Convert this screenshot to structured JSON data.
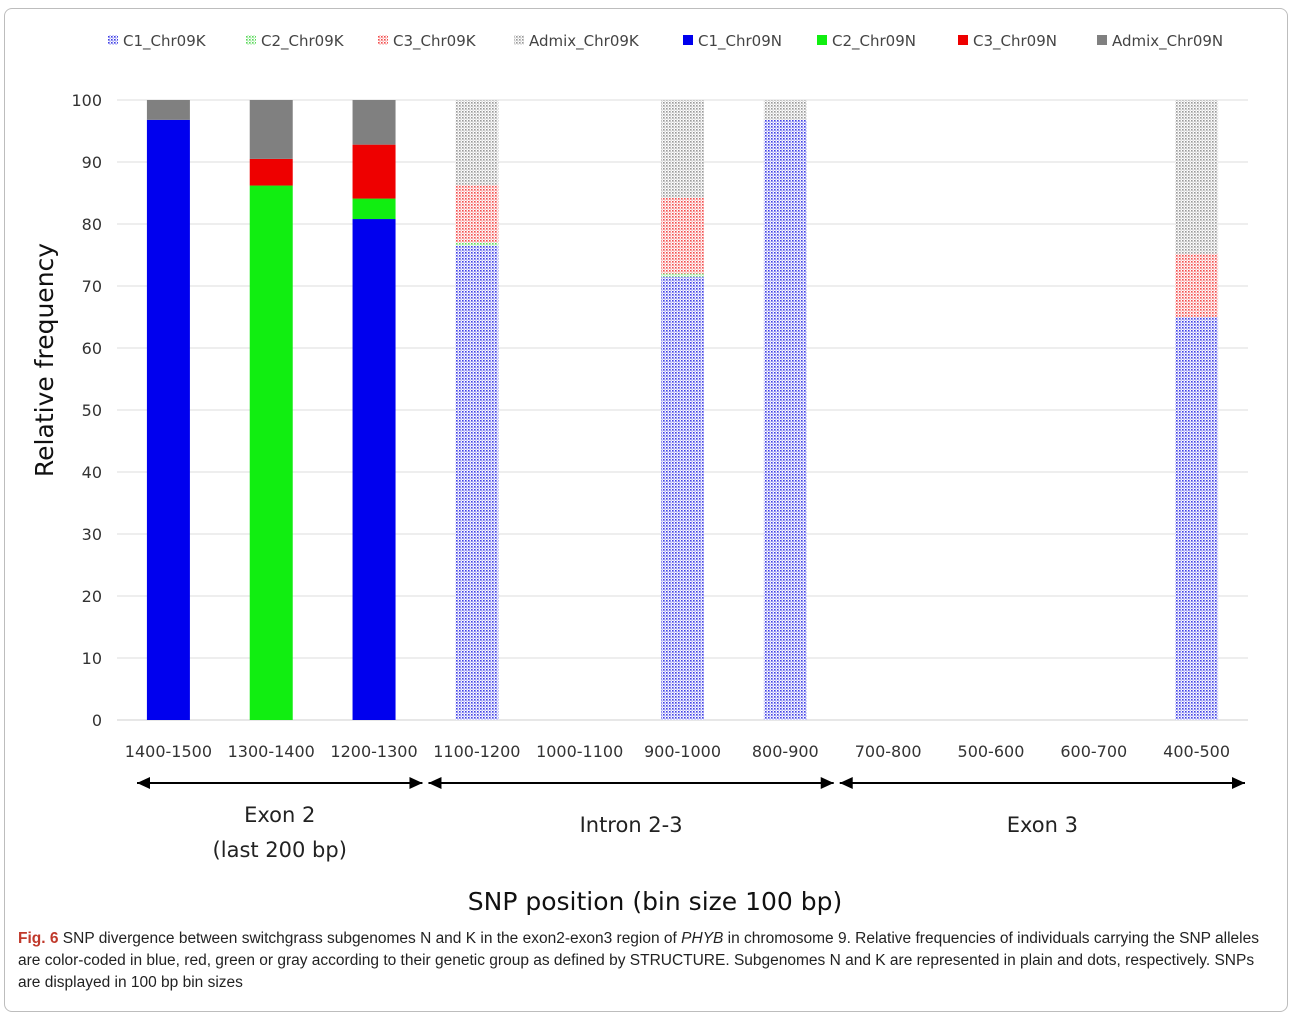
{
  "chart_data": {
    "type": "bar",
    "stacked": true,
    "ylabel": "Relative frequency",
    "xlabel": "SNP position (bin size 100 bp)",
    "ylim": [
      0,
      100
    ],
    "yticks": [
      0,
      10,
      20,
      30,
      40,
      50,
      60,
      70,
      80,
      90,
      100
    ],
    "grid": true,
    "legend_position": "top",
    "categories": [
      "1400-1500",
      "1300-1400",
      "1200-1300",
      "1100-1200",
      "1000-1100",
      "900-1000",
      "800-900",
      "700-800",
      "500-600",
      "600-700",
      "400-500"
    ],
    "series": [
      {
        "name": "C1_Chr09K",
        "color": "#0000dd",
        "pattern": "dots",
        "values": [
          0,
          0,
          0,
          76.5,
          0,
          71.5,
          96.8,
          0,
          0,
          0,
          65
        ]
      },
      {
        "name": "C2_Chr09K",
        "color": "#22cc22",
        "pattern": "dots",
        "values": [
          0,
          0,
          0,
          0.5,
          0,
          0.5,
          0,
          0,
          0,
          0,
          0
        ]
      },
      {
        "name": "C3_Chr09K",
        "color": "#ee1111",
        "pattern": "dots",
        "values": [
          0,
          0,
          0,
          9.3,
          0,
          12.2,
          0,
          0,
          0,
          0,
          10.2
        ]
      },
      {
        "name": "Admix_Chr09K",
        "color": "#777777",
        "pattern": "dots",
        "values": [
          0,
          0,
          0,
          13.7,
          0,
          15.8,
          3.2,
          0,
          0,
          0,
          24.8
        ]
      },
      {
        "name": "C1_Chr09N",
        "color": "#0000ee",
        "pattern": "solid",
        "values": [
          96.8,
          0,
          80.8,
          0,
          0,
          0,
          0,
          0,
          0,
          0,
          0
        ]
      },
      {
        "name": "C2_Chr09N",
        "color": "#11ee11",
        "pattern": "solid",
        "values": [
          0,
          86.2,
          3.3,
          0,
          0,
          0,
          0,
          0,
          0,
          0,
          0
        ]
      },
      {
        "name": "C3_Chr09N",
        "color": "#ee0000",
        "pattern": "solid",
        "values": [
          0,
          4.3,
          8.7,
          0,
          0,
          0,
          0,
          0,
          0,
          0,
          0
        ]
      },
      {
        "name": "Admix_Chr09N",
        "color": "#808080",
        "pattern": "solid",
        "values": [
          3.2,
          9.5,
          7.2,
          0,
          0,
          0,
          0,
          0,
          0,
          0,
          0
        ]
      }
    ],
    "regions": [
      {
        "line1": "Exon 2",
        "line2": "(last 200 bp)",
        "from": 0,
        "to": 2
      },
      {
        "line1": "Intron 2-3",
        "line2": "",
        "from": 3,
        "to": 6
      },
      {
        "line1": "Exon 3",
        "line2": "",
        "from": 7,
        "to": 10
      }
    ]
  },
  "caption": {
    "label": "Fig. 6",
    "text_1": " SNP divergence between switchgrass subgenomes N and K in the exon2-exon3 region of ",
    "gene": "PHYB",
    "text_2": " in chromosome 9. Relative frequencies of individuals carrying the SNP alleles are color-coded in blue, red, green or gray according to their genetic group as defined by STRUCTURE. Subgenomes N and K are represented in plain and dots, respectively. SNPs are displayed in 100 bp bin sizes"
  }
}
